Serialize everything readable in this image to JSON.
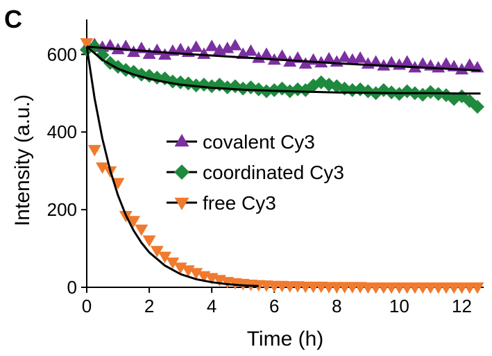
{
  "panel_label": "C",
  "chart_data": {
    "type": "scatter",
    "xlabel": "Time (h)",
    "ylabel": "Intensity (a.u.)",
    "xlim": [
      0,
      12.7
    ],
    "ylim": [
      0,
      690
    ],
    "xticks": [
      0,
      2,
      4,
      6,
      8,
      10,
      12
    ],
    "yticks": [
      0,
      200,
      400,
      600
    ],
    "grid": false,
    "legend_position": "center",
    "series": [
      {
        "name": "covalent Cy3",
        "marker": "triangle-up",
        "color": "#7b2fa0",
        "x": [
          0.0,
          0.25,
          0.5,
          0.75,
          1.0,
          1.25,
          1.5,
          1.75,
          2.0,
          2.25,
          2.5,
          2.75,
          3.0,
          3.25,
          3.5,
          3.75,
          4.0,
          4.25,
          4.5,
          4.75,
          5.0,
          5.25,
          5.5,
          5.75,
          6.0,
          6.25,
          6.5,
          6.75,
          7.0,
          7.25,
          7.5,
          7.75,
          8.0,
          8.25,
          8.5,
          8.75,
          9.0,
          9.25,
          9.5,
          9.75,
          10.0,
          10.25,
          10.5,
          10.75,
          11.0,
          11.25,
          11.5,
          11.75,
          12.0,
          12.25,
          12.5
        ],
        "y": [
          620,
          625,
          618,
          622,
          612,
          620,
          605,
          615,
          600,
          610,
          598,
          608,
          612,
          605,
          618,
          600,
          620,
          610,
          615,
          622,
          600,
          608,
          590,
          600,
          585,
          595,
          580,
          590,
          575,
          585,
          578,
          588,
          580,
          592,
          585,
          590,
          575,
          580,
          570,
          578,
          572,
          580,
          565,
          575,
          570,
          565,
          575,
          568,
          560,
          572,
          565
        ]
      },
      {
        "name": "coordinated Cy3",
        "marker": "diamond",
        "color": "#1e8a3e",
        "x": [
          0.0,
          0.25,
          0.5,
          0.75,
          1.0,
          1.25,
          1.5,
          1.75,
          2.0,
          2.25,
          2.5,
          2.75,
          3.0,
          3.25,
          3.5,
          3.75,
          4.0,
          4.25,
          4.5,
          4.75,
          5.0,
          5.25,
          5.5,
          5.75,
          6.0,
          6.25,
          6.5,
          6.75,
          7.0,
          7.25,
          7.5,
          7.75,
          8.0,
          8.25,
          8.5,
          8.75,
          9.0,
          9.25,
          9.5,
          9.75,
          10.0,
          10.25,
          10.5,
          10.75,
          11.0,
          11.25,
          11.5,
          11.75,
          12.0,
          12.25,
          12.5
        ],
        "y": [
          612,
          620,
          598,
          578,
          568,
          560,
          555,
          548,
          545,
          540,
          538,
          530,
          528,
          525,
          520,
          522,
          518,
          522,
          515,
          518,
          512,
          515,
          510,
          505,
          508,
          512,
          505,
          510,
          508,
          520,
          528,
          522,
          518,
          512,
          508,
          510,
          505,
          500,
          508,
          502,
          498,
          505,
          500,
          496,
          503,
          498,
          495,
          485,
          492,
          480,
          465
        ]
      },
      {
        "name": "free Cy3",
        "marker": "triangle-down",
        "color": "#f07a2d",
        "x": [
          0.0,
          0.25,
          0.5,
          0.75,
          1.0,
          1.25,
          1.5,
          1.75,
          2.0,
          2.25,
          2.5,
          2.75,
          3.0,
          3.25,
          3.5,
          3.75,
          4.0,
          4.25,
          4.5,
          4.75,
          5.0,
          5.25,
          5.5,
          5.75,
          6.0,
          6.25,
          6.5,
          6.75,
          7.0,
          7.25,
          7.5,
          7.75,
          8.0,
          8.25,
          8.5,
          8.75,
          9.0,
          9.25,
          9.5,
          9.75,
          10.0,
          10.25,
          10.5,
          10.75,
          11.0,
          11.25,
          11.5,
          11.75,
          12.0,
          12.25,
          12.5
        ],
        "y": [
          630,
          355,
          310,
          300,
          270,
          185,
          172,
          150,
          122,
          95,
          80,
          65,
          52,
          45,
          38,
          30,
          25,
          20,
          15,
          12,
          10,
          8,
          7,
          6,
          5,
          5,
          4,
          4,
          3,
          3,
          3,
          2,
          2,
          2,
          2,
          2,
          1,
          1,
          1,
          1,
          1,
          1,
          1,
          1,
          1,
          1,
          1,
          1,
          1,
          1,
          1
        ]
      }
    ],
    "fit_curves": [
      {
        "x": [
          0.0,
          1.0,
          2.0,
          3.0,
          4.0,
          5.0,
          6.0,
          7.0,
          8.0,
          9.0,
          10.0,
          11.0,
          12.0,
          12.6
        ],
        "y": [
          620,
          614,
          608,
          602,
          597,
          592,
          587,
          582,
          577,
          573,
          569,
          565,
          561,
          558
        ]
      },
      {
        "x": [
          0.0,
          0.5,
          1.0,
          1.5,
          2.0,
          2.5,
          3.0,
          4.0,
          5.0,
          6.0,
          7.0,
          8.0,
          9.0,
          10.0,
          11.0,
          12.0,
          12.6
        ],
        "y": [
          620,
          586,
          563,
          548,
          537,
          529,
          522,
          514,
          509,
          506,
          504,
          502,
          501,
          500,
          500,
          499,
          499
        ]
      },
      {
        "x": [
          0.0,
          0.25,
          0.5,
          0.75,
          1.0,
          1.25,
          1.5,
          1.75,
          2.0,
          2.5,
          3.0,
          3.5,
          4.0,
          4.5,
          5.0,
          5.5
        ],
        "y": [
          620,
          487,
          383,
          301,
          237,
          186,
          146,
          115,
          90,
          56,
          34,
          21,
          13,
          8,
          5,
          3
        ]
      }
    ]
  }
}
